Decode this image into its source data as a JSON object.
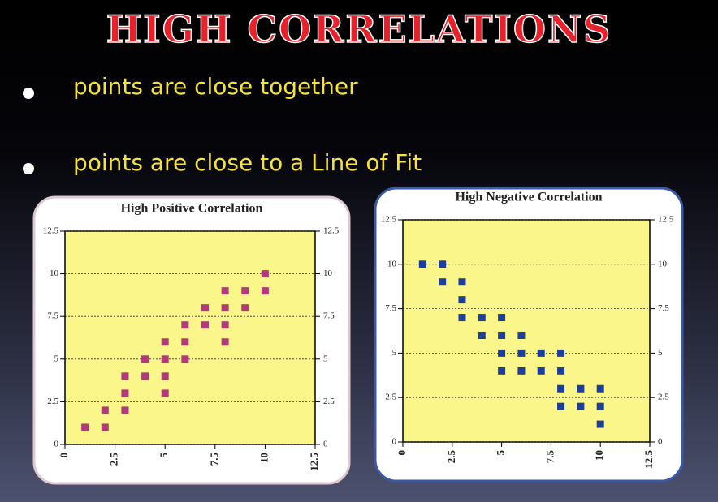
{
  "title": "HIGH   CORRELATIONS",
  "bullets": [
    "points are close together",
    "points are close to a Line of Fit"
  ],
  "chart_data": [
    {
      "type": "scatter",
      "title": "High Positive Correlation",
      "color": "#b03a7a",
      "x": [
        1,
        2,
        2,
        3,
        3,
        3,
        4,
        4,
        5,
        5,
        5,
        5,
        6,
        6,
        6,
        7,
        7,
        8,
        8,
        8,
        8,
        9,
        9,
        10,
        10
      ],
      "values": [
        1,
        1,
        2,
        2,
        3,
        4,
        4,
        5,
        3,
        4,
        5,
        6,
        5,
        6,
        7,
        7,
        8,
        6,
        7,
        8,
        9,
        8,
        9,
        9,
        10
      ],
      "xlim": [
        0,
        12.5
      ],
      "ylim": [
        0,
        12.5
      ],
      "xticks": [
        0,
        2.5,
        5,
        7.5,
        10,
        12.5
      ],
      "yticks": [
        0,
        2.5,
        5,
        7.5,
        10,
        12.5
      ],
      "grid": true
    },
    {
      "type": "scatter",
      "title": "High Negative Correlation",
      "color": "#1c3f9e",
      "x": [
        1,
        2,
        2,
        3,
        3,
        3,
        4,
        4,
        5,
        5,
        5,
        5,
        6,
        6,
        6,
        7,
        7,
        8,
        8,
        8,
        8,
        9,
        9,
        10,
        10,
        10
      ],
      "values": [
        10,
        10,
        9,
        9,
        8,
        7,
        7,
        6,
        7,
        6,
        5,
        4,
        6,
        5,
        4,
        5,
        4,
        5,
        4,
        3,
        2,
        3,
        2,
        3,
        2,
        1
      ],
      "xlim": [
        0,
        12.5
      ],
      "ylim": [
        0,
        12.5
      ],
      "xticks": [
        0,
        2.5,
        5,
        7.5,
        10,
        12.5
      ],
      "yticks": [
        0,
        2.5,
        5,
        7.5,
        10,
        12.5
      ],
      "grid": true
    }
  ]
}
